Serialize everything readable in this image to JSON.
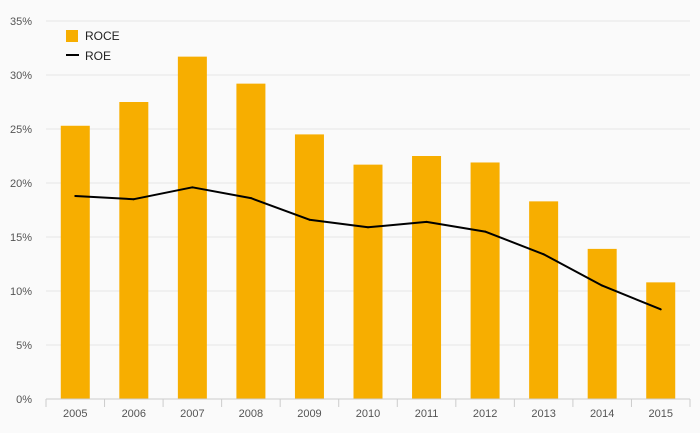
{
  "chart_data": {
    "type": "bar",
    "categories": [
      "2005",
      "2006",
      "2007",
      "2008",
      "2009",
      "2010",
      "2011",
      "2012",
      "2013",
      "2014",
      "2015"
    ],
    "series": [
      {
        "name": "ROCE",
        "type": "bar",
        "color": "#F7AE00",
        "values": [
          25.3,
          27.5,
          31.7,
          29.2,
          24.5,
          21.7,
          22.5,
          21.9,
          18.3,
          13.9,
          10.8
        ]
      },
      {
        "name": "ROE",
        "type": "line",
        "color": "#000000",
        "values": [
          18.8,
          18.5,
          19.6,
          18.6,
          16.6,
          15.9,
          16.4,
          15.5,
          13.4,
          10.5,
          8.3
        ]
      }
    ],
    "y_ticks": [
      "0%",
      "5%",
      "10%",
      "15%",
      "20%",
      "25%",
      "30%",
      "35%"
    ],
    "ylim": [
      0,
      35
    ],
    "y_unit": "%",
    "grid": true,
    "legend_position": "top-left"
  }
}
